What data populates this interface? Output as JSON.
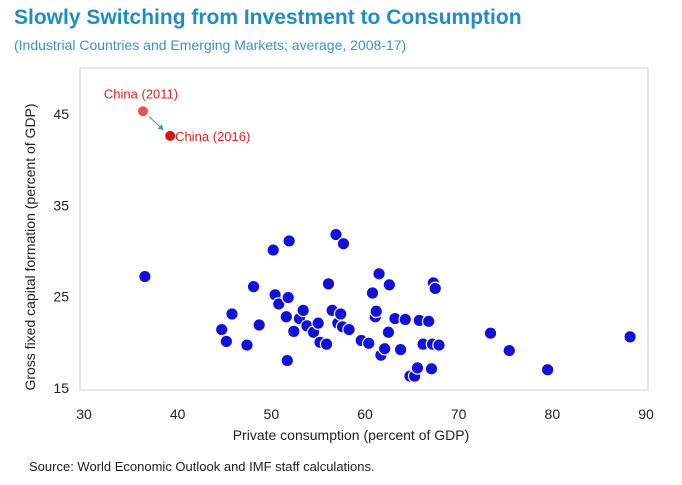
{
  "header": {
    "title": "Slowly Switching from Investment to Consumption",
    "subtitle": "(Industrial Countries and Emerging Markets; average, 2008-17)"
  },
  "footer": {
    "source": "Source: World Economic Outlook and IMF staff  calculations."
  },
  "colors": {
    "point": "#1010d8",
    "point_stroke": "#ffffff",
    "highlight_2011": "#f05050",
    "highlight_2016": "#d81010",
    "annotation_text": "#e02020",
    "arrow": "#4a8fc8",
    "frame": "#cfcfcf"
  },
  "chart_data": {
    "type": "scatter",
    "xlabel": "Private consumption (percent of GDP)",
    "ylabel": "Gross fixed capital formation (percent of GDP)",
    "xlim": [
      30,
      90
    ],
    "ylim": [
      15,
      49
    ],
    "xticks": [
      30,
      40,
      50,
      60,
      70,
      80,
      90
    ],
    "yticks": [
      15,
      25,
      35,
      45
    ],
    "grid": false,
    "points": [
      [
        36.5,
        27.2
      ],
      [
        44.7,
        21.4
      ],
      [
        45.2,
        20.1
      ],
      [
        45.8,
        23.1
      ],
      [
        47.4,
        19.7
      ],
      [
        48.1,
        26.1
      ],
      [
        48.7,
        21.9
      ],
      [
        50.2,
        30.1
      ],
      [
        50.4,
        25.2
      ],
      [
        50.8,
        24.2
      ],
      [
        51.6,
        22.8
      ],
      [
        51.8,
        24.9
      ],
      [
        51.9,
        31.1
      ],
      [
        51.7,
        18.0
      ],
      [
        52.4,
        21.2
      ],
      [
        53.0,
        22.6
      ],
      [
        53.4,
        23.5
      ],
      [
        53.8,
        21.8
      ],
      [
        54.5,
        21.1
      ],
      [
        55.0,
        22.1
      ],
      [
        55.2,
        20.0
      ],
      [
        56.1,
        26.4
      ],
      [
        56.5,
        23.5
      ],
      [
        56.9,
        31.8
      ],
      [
        57.1,
        22.1
      ],
      [
        57.4,
        23.1
      ],
      [
        57.6,
        21.7
      ],
      [
        57.7,
        30.8
      ],
      [
        55.9,
        19.8
      ],
      [
        58.3,
        21.4
      ],
      [
        59.6,
        20.2
      ],
      [
        60.4,
        19.9
      ],
      [
        60.8,
        25.4
      ],
      [
        61.1,
        22.8
      ],
      [
        61.2,
        23.4
      ],
      [
        61.5,
        27.5
      ],
      [
        61.7,
        18.6
      ],
      [
        62.1,
        19.3
      ],
      [
        62.5,
        21.1
      ],
      [
        62.6,
        26.3
      ],
      [
        63.2,
        22.6
      ],
      [
        63.8,
        19.2
      ],
      [
        64.3,
        22.5
      ],
      [
        64.8,
        16.3
      ],
      [
        65.3,
        16.3
      ],
      [
        65.6,
        17.2
      ],
      [
        65.8,
        22.4
      ],
      [
        66.2,
        19.8
      ],
      [
        66.8,
        22.3
      ],
      [
        67.1,
        17.1
      ],
      [
        67.3,
        26.5
      ],
      [
        67.5,
        25.9
      ],
      [
        67.2,
        19.8
      ],
      [
        67.9,
        19.7
      ],
      [
        73.4,
        21.0
      ],
      [
        75.4,
        19.1
      ],
      [
        79.5,
        17.0
      ],
      [
        88.3,
        20.6
      ]
    ],
    "highlights": [
      {
        "label": "China (2011)",
        "x": 36.3,
        "y": 45.3
      },
      {
        "label": "China (2016)",
        "x": 39.2,
        "y": 42.6
      }
    ]
  }
}
